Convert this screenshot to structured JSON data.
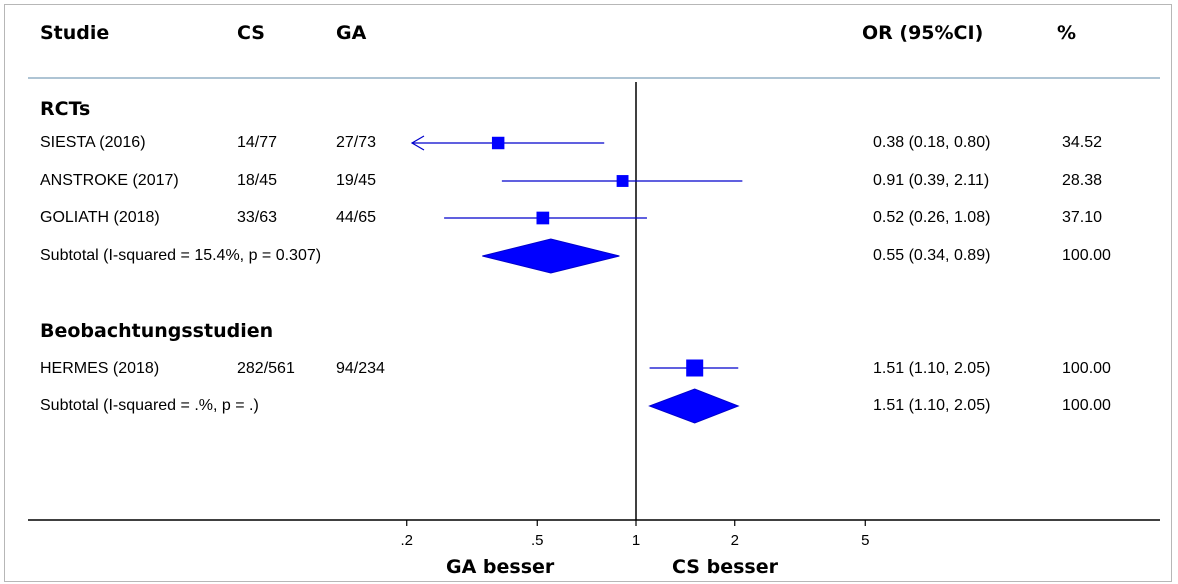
{
  "header": {
    "study": "Studie",
    "cs": "CS",
    "ga": "GA",
    "or": "OR (95%CI)",
    "weight": "%"
  },
  "colors": {
    "marker": "#0000ff",
    "line": "#0000cc",
    "axis": "#000000",
    "separator": "#aec4d4"
  },
  "chart_data": {
    "type": "forest",
    "x_scale": "log",
    "xlim": [
      0.1,
      10
    ],
    "null_line": 1,
    "x_ticks": [
      {
        "value": 0.2,
        "label": ".2"
      },
      {
        "value": 0.5,
        "label": ".5"
      },
      {
        "value": 1,
        "label": "1"
      },
      {
        "value": 2,
        "label": "2"
      },
      {
        "value": 5,
        "label": "5"
      }
    ],
    "left_label": "GA besser",
    "right_label": "CS besser",
    "groups": [
      {
        "name": "RCTs",
        "studies": [
          {
            "name": "SIESTA (2016)",
            "cs": "14/77",
            "ga": "27/73",
            "or": 0.38,
            "lo": 0.18,
            "hi": 0.8,
            "or_text": "0.38 (0.18, 0.80)",
            "weight": "34.52",
            "weight_value": 34.52
          },
          {
            "name": "ANSTROKE (2017)",
            "cs": "18/45",
            "ga": "19/45",
            "or": 0.91,
            "lo": 0.39,
            "hi": 2.11,
            "or_text": "0.91 (0.39, 2.11)",
            "weight": "28.38",
            "weight_value": 28.38
          },
          {
            "name": "GOLIATH (2018)",
            "cs": "33/63",
            "ga": "44/65",
            "or": 0.52,
            "lo": 0.26,
            "hi": 1.08,
            "or_text": "0.52 (0.26, 1.08)",
            "weight": "37.10",
            "weight_value": 37.1
          }
        ],
        "subtotal": {
          "label": "Subtotal  (I-squared = 15.4%, p = 0.307)",
          "or": 0.55,
          "lo": 0.34,
          "hi": 0.89,
          "or_text": "0.55 (0.34, 0.89)",
          "weight": "100.00"
        }
      },
      {
        "name": "Beobachtungsstudien",
        "studies": [
          {
            "name": "HERMES (2018)",
            "cs": "282/561",
            "ga": "94/234",
            "or": 1.51,
            "lo": 1.1,
            "hi": 2.05,
            "or_text": "1.51 (1.10, 2.05)",
            "weight": "100.00",
            "weight_value": 100.0
          }
        ],
        "subtotal": {
          "label": "Subtotal  (I-squared = .%, p = .)",
          "or": 1.51,
          "lo": 1.1,
          "hi": 2.05,
          "or_text": "1.51 (1.10, 2.05)",
          "weight": "100.00"
        }
      }
    ]
  }
}
